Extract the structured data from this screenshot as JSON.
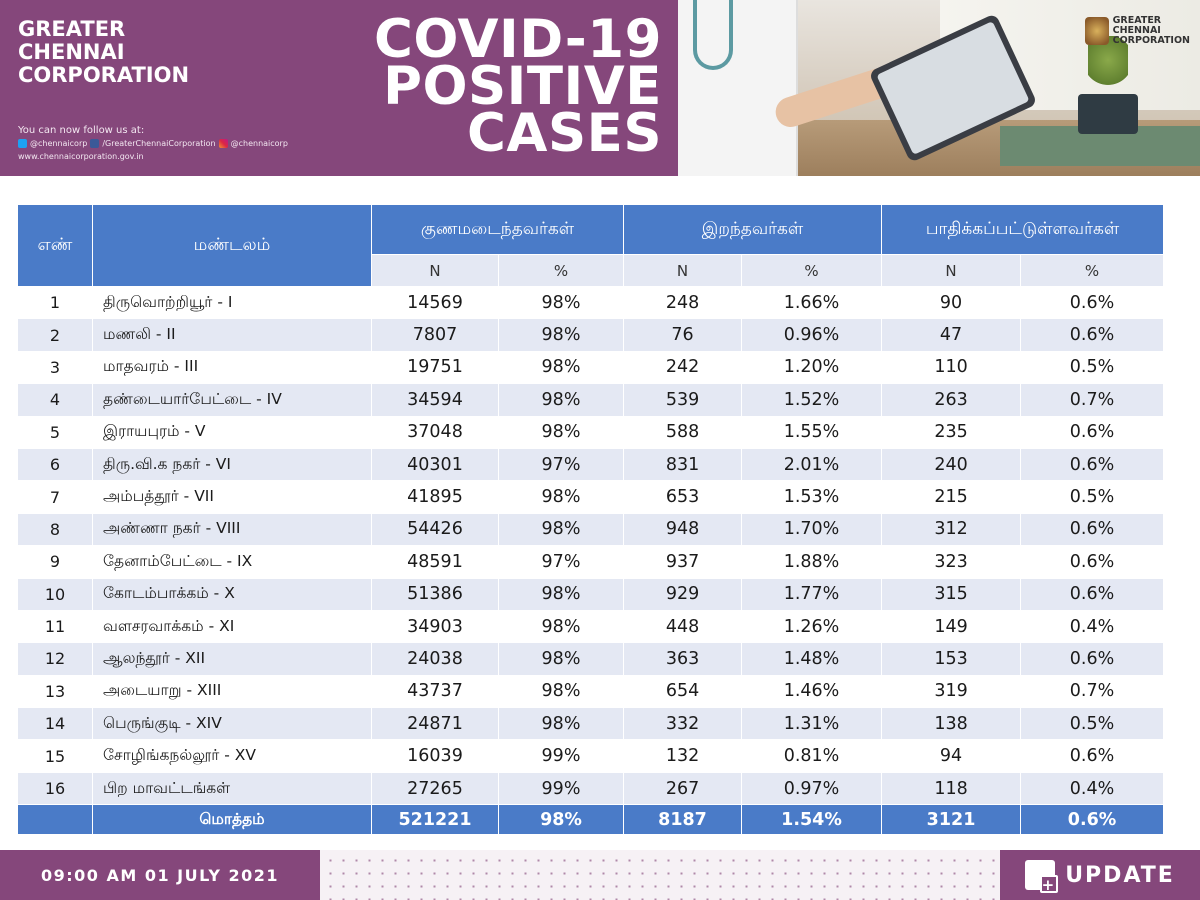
{
  "header": {
    "org_name": [
      "GREATER",
      "CHENNAI",
      "CORPORATION"
    ],
    "follow_label": "You can now follow us at:",
    "twitter": "@chennaicorp",
    "facebook": "/GreaterChennaiCorporation",
    "instagram": "@chennaicorp",
    "website": "www.chennaicorporation.gov.in",
    "title_lines": [
      "COVID-19",
      "POSITIVE",
      "CASES"
    ],
    "logo_text": [
      "GREATER",
      "CHENNAI",
      "CORPORATION"
    ]
  },
  "table": {
    "col_index": "எண்",
    "col_zone": "மண்டலம்",
    "group_recovered": "குணமடைந்தவர்கள்",
    "group_deceased": "இறந்தவர்கள்",
    "group_affected": "பாதிக்கப்பட்டுள்ளவர்கள்",
    "sub_n": "N",
    "sub_pct": "%",
    "rows": [
      {
        "no": "1",
        "zone": "திருவொற்றியூர் - I",
        "rec_n": "14569",
        "rec_pct": "98%",
        "dec_n": "248",
        "dec_pct": "1.66%",
        "aff_n": "90",
        "aff_pct": "0.6%"
      },
      {
        "no": "2",
        "zone": "மணலி - II",
        "rec_n": "7807",
        "rec_pct": "98%",
        "dec_n": "76",
        "dec_pct": "0.96%",
        "aff_n": "47",
        "aff_pct": "0.6%"
      },
      {
        "no": "3",
        "zone": "மாதவரம் - III",
        "rec_n": "19751",
        "rec_pct": "98%",
        "dec_n": "242",
        "dec_pct": "1.20%",
        "aff_n": "110",
        "aff_pct": "0.5%"
      },
      {
        "no": "4",
        "zone": "தண்டையார்பேட்டை - IV",
        "rec_n": "34594",
        "rec_pct": "98%",
        "dec_n": "539",
        "dec_pct": "1.52%",
        "aff_n": "263",
        "aff_pct": "0.7%"
      },
      {
        "no": "5",
        "zone": "இராயபுரம் - V",
        "rec_n": "37048",
        "rec_pct": "98%",
        "dec_n": "588",
        "dec_pct": "1.55%",
        "aff_n": "235",
        "aff_pct": "0.6%"
      },
      {
        "no": "6",
        "zone": "திரு.வி.க நகர் - VI",
        "rec_n": "40301",
        "rec_pct": "97%",
        "dec_n": "831",
        "dec_pct": "2.01%",
        "aff_n": "240",
        "aff_pct": "0.6%"
      },
      {
        "no": "7",
        "zone": "அம்பத்தூர் - VII",
        "rec_n": "41895",
        "rec_pct": "98%",
        "dec_n": "653",
        "dec_pct": "1.53%",
        "aff_n": "215",
        "aff_pct": "0.5%"
      },
      {
        "no": "8",
        "zone": "அண்ணா நகர் - VIII",
        "rec_n": "54426",
        "rec_pct": "98%",
        "dec_n": "948",
        "dec_pct": "1.70%",
        "aff_n": "312",
        "aff_pct": "0.6%"
      },
      {
        "no": "9",
        "zone": "தேனாம்பேட்டை - IX",
        "rec_n": "48591",
        "rec_pct": "97%",
        "dec_n": "937",
        "dec_pct": "1.88%",
        "aff_n": "323",
        "aff_pct": "0.6%"
      },
      {
        "no": "10",
        "zone": "கோடம்பாக்கம் - X",
        "rec_n": "51386",
        "rec_pct": "98%",
        "dec_n": "929",
        "dec_pct": "1.77%",
        "aff_n": "315",
        "aff_pct": "0.6%"
      },
      {
        "no": "11",
        "zone": "வளசரவாக்கம் - XI",
        "rec_n": "34903",
        "rec_pct": "98%",
        "dec_n": "448",
        "dec_pct": "1.26%",
        "aff_n": "149",
        "aff_pct": "0.4%"
      },
      {
        "no": "12",
        "zone": "ஆலந்தூர் - XII",
        "rec_n": "24038",
        "rec_pct": "98%",
        "dec_n": "363",
        "dec_pct": "1.48%",
        "aff_n": "153",
        "aff_pct": "0.6%"
      },
      {
        "no": "13",
        "zone": "அடையாறு - XIII",
        "rec_n": "43737",
        "rec_pct": "98%",
        "dec_n": "654",
        "dec_pct": "1.46%",
        "aff_n": "319",
        "aff_pct": "0.7%"
      },
      {
        "no": "14",
        "zone": "பெருங்குடி - XIV",
        "rec_n": "24871",
        "rec_pct": "98%",
        "dec_n": "332",
        "dec_pct": "1.31%",
        "aff_n": "138",
        "aff_pct": "0.5%"
      },
      {
        "no": "15",
        "zone": "சோழிங்கநல்லூர் - XV",
        "rec_n": "16039",
        "rec_pct": "99%",
        "dec_n": "132",
        "dec_pct": "0.81%",
        "aff_n": "94",
        "aff_pct": "0.6%"
      },
      {
        "no": "16",
        "zone": "பிற மாவட்டங்கள்",
        "rec_n": "27265",
        "rec_pct": "99%",
        "dec_n": "267",
        "dec_pct": "0.97%",
        "aff_n": "118",
        "aff_pct": "0.4%"
      }
    ],
    "total": {
      "label": "மொத்தம்",
      "rec_n": "521221",
      "rec_pct": "98%",
      "dec_n": "8187",
      "dec_pct": "1.54%",
      "aff_n": "3121",
      "aff_pct": "0.6%"
    }
  },
  "footer": {
    "datetime": "09:00 AM 01 JULY 2021",
    "update_label": "UPDATE"
  },
  "colors": {
    "brand_purple": "#85477b",
    "table_blue": "#4a7bc8",
    "row_stripe": "#e4e8f3"
  }
}
